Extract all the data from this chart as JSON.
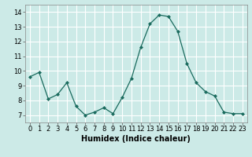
{
  "x": [
    0,
    1,
    2,
    3,
    4,
    5,
    6,
    7,
    8,
    9,
    10,
    11,
    12,
    13,
    14,
    15,
    16,
    17,
    18,
    19,
    20,
    21,
    22,
    23
  ],
  "y": [
    9.6,
    9.9,
    8.1,
    8.4,
    9.2,
    7.6,
    7.0,
    7.2,
    7.5,
    7.1,
    8.2,
    9.5,
    11.6,
    13.2,
    13.8,
    13.7,
    12.7,
    10.5,
    9.2,
    8.6,
    8.3,
    7.2,
    7.1,
    7.1
  ],
  "line_color": "#1a6b5e",
  "marker_color": "#1a6b5e",
  "bg_color": "#cceae7",
  "grid_color": "#ffffff",
  "xlabel": "Humidex (Indice chaleur)",
  "xlabel_fontsize": 7,
  "tick_fontsize": 6,
  "ylim": [
    6.5,
    14.5
  ],
  "yticks": [
    7,
    8,
    9,
    10,
    11,
    12,
    13,
    14
  ],
  "xlim": [
    -0.5,
    23.5
  ],
  "xticks": [
    0,
    1,
    2,
    3,
    4,
    5,
    6,
    7,
    8,
    9,
    10,
    11,
    12,
    13,
    14,
    15,
    16,
    17,
    18,
    19,
    20,
    21,
    22,
    23
  ]
}
